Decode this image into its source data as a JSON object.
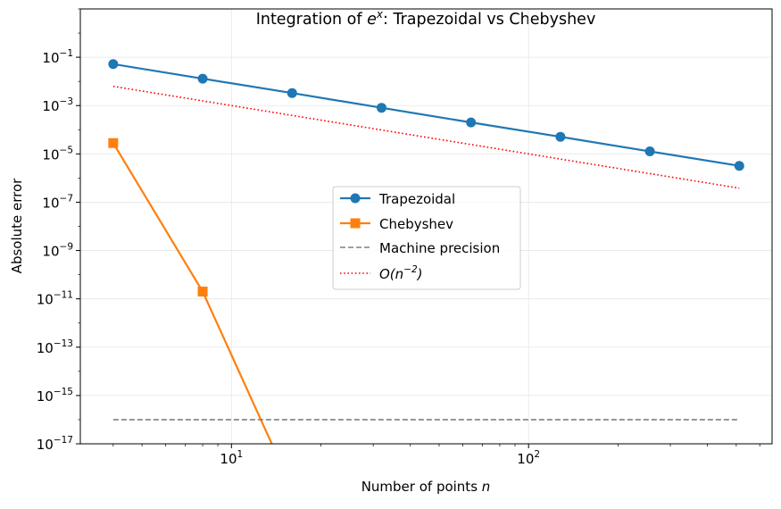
{
  "chart_data": {
    "type": "line",
    "title_prefix": "Integration of ",
    "title_math_base": "e",
    "title_math_sup": "x",
    "title_suffix": ": Trapezoidal vs Chebyshev",
    "xlabel_text": "Number of points ",
    "xlabel_math": "n",
    "ylabel": "Absolute error",
    "xscale": "log",
    "yscale": "log",
    "xlim": [
      3.1,
      660
    ],
    "ylim": [
      1e-17,
      10
    ],
    "grid": true,
    "xticks": [
      {
        "value": 10,
        "base": "10",
        "exp": "1"
      },
      {
        "value": 100,
        "base": "10",
        "exp": "2"
      }
    ],
    "yticks": [
      {
        "value": 0.1,
        "base": "10",
        "exp": "−1"
      },
      {
        "value": 0.001,
        "base": "10",
        "exp": "−3"
      },
      {
        "value": 1e-05,
        "base": "10",
        "exp": "−5"
      },
      {
        "value": 1e-07,
        "base": "10",
        "exp": "−7"
      },
      {
        "value": 1e-09,
        "base": "10",
        "exp": "−9"
      },
      {
        "value": 1e-11,
        "base": "10",
        "exp": "−11"
      },
      {
        "value": 1e-13,
        "base": "10",
        "exp": "−13"
      },
      {
        "value": 1e-15,
        "base": "10",
        "exp": "−15"
      },
      {
        "value": 1e-17,
        "base": "10",
        "exp": "−17"
      }
    ],
    "x": [
      4,
      8,
      16,
      32,
      64,
      128,
      256,
      512
    ],
    "series": [
      {
        "name": "Trapezoidal",
        "color": "#1f77b4",
        "marker": "circle",
        "style": "solid",
        "values": [
          0.052,
          0.013,
          0.0033,
          0.00081,
          0.0002,
          5.1e-05,
          1.27e-05,
          3.2e-06
        ]
      },
      {
        "name": "Chebyshev",
        "color": "#ff7f0e",
        "marker": "square",
        "style": "solid",
        "values": [
          2.8e-05,
          2e-11,
          0,
          0,
          0,
          0,
          0,
          0
        ]
      },
      {
        "name": "Machine precision",
        "color": "#808080",
        "marker": "none",
        "style": "dashed",
        "values": [
          1e-16,
          1e-16,
          1e-16,
          1e-16,
          1e-16,
          1e-16,
          1e-16,
          1e-16
        ]
      },
      {
        "name": "O(n^-2)",
        "label_pre": "O(",
        "label_base": "n",
        "label_sup": "−2",
        "label_post": ")",
        "color": "#ff0000",
        "marker": "none",
        "style": "dotted",
        "values": [
          0.00625,
          0.0015625,
          0.000390625,
          9.765625e-05,
          2.44140625e-05,
          6.103515625e-06,
          1.52587890625e-06,
          3.814697265625e-07
        ]
      }
    ],
    "legend_placement": "center"
  }
}
